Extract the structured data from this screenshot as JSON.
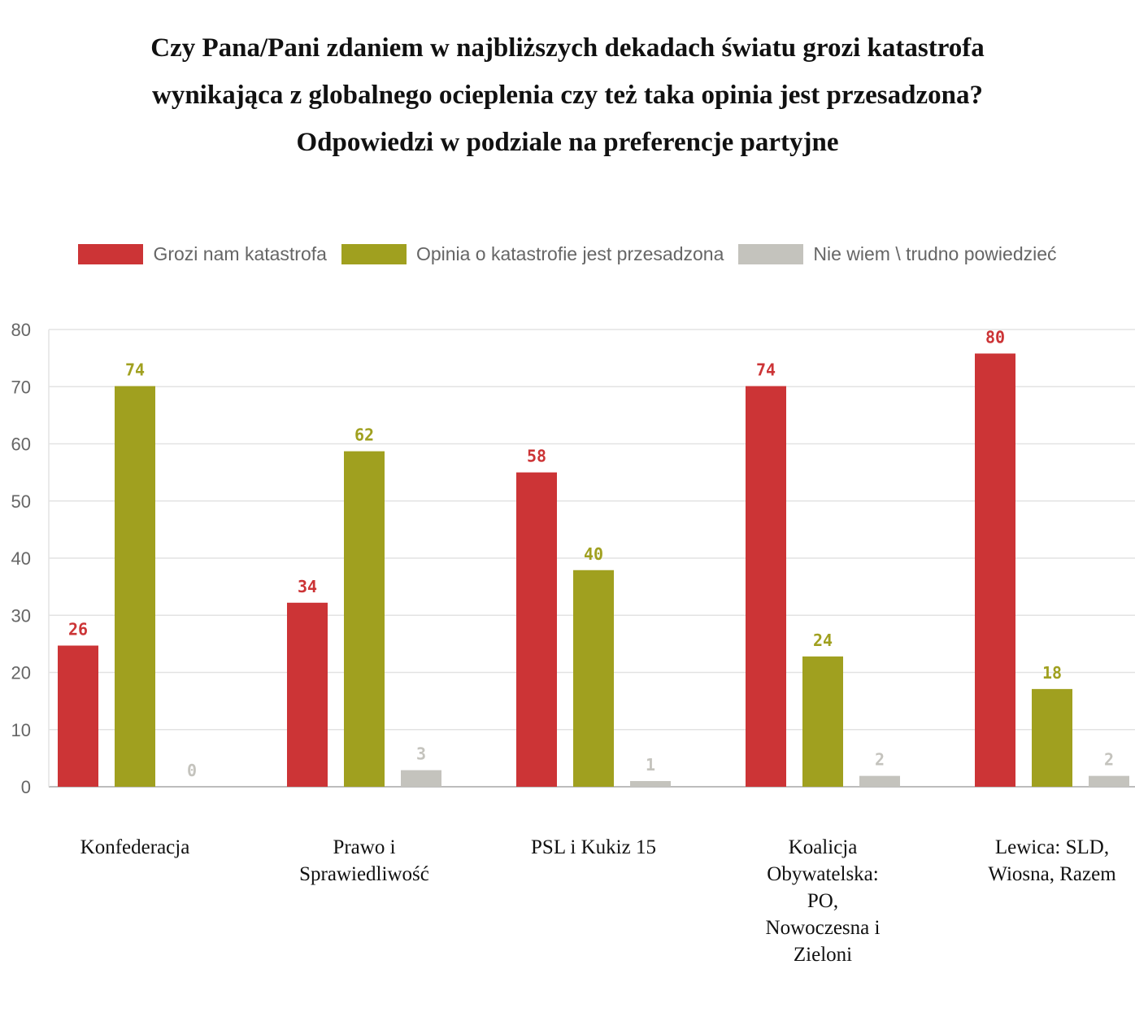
{
  "title_lines": [
    "Czy Pana/Pani zdaniem w najbliższych dekadach światu grozi katastrofa",
    "wynikająca z globalnego ocieplenia czy też taka opinia jest przesadzona?",
    "Odpowiedzi w podziale na preferencje partyjne"
  ],
  "chart_data": {
    "type": "bar",
    "title": "Czy Pana/Pani zdaniem w najbliższych dekadach światu grozi katastrofa wynikająca z globalnego ocieplenia czy też taka opinia jest przesadzona? Odpowiedzi w podziale na preferencje partyjne",
    "categories": [
      "Konfederacja",
      "Prawo i Sprawiedliwość",
      "PSL i Kukiz 15",
      "Koalicja Obywatelska: PO, Nowoczesna i Zieloni",
      "Lewica: SLD, Wiosna, Razem"
    ],
    "category_lines": [
      [
        "Konfederacja"
      ],
      [
        "Prawo i",
        "Sprawiedliwość"
      ],
      [
        "PSL i Kukiz 15"
      ],
      [
        "Koalicja",
        "Obywatelska:",
        "PO,",
        "Nowoczesna i",
        "Zieloni"
      ],
      [
        "Lewica: SLD,",
        "Wiosna, Razem"
      ]
    ],
    "series": [
      {
        "name": "Grozi nam katastrofa",
        "color": "#cc3436",
        "values": [
          26,
          34,
          58,
          74,
          80
        ],
        "bar_values": [
          24.7,
          32.2,
          55,
          70.1,
          75.8
        ]
      },
      {
        "name": "Opinia o katastrofie jest przesadzona",
        "color": "#a0a01f",
        "values": [
          74,
          62,
          40,
          24,
          18
        ],
        "bar_values": [
          70.1,
          58.7,
          37.9,
          22.8,
          17.1
        ]
      },
      {
        "name": "Nie wiem \\ trudno powiedzieć",
        "color": "#c4c3bd",
        "values": [
          0,
          3,
          1,
          2,
          2
        ],
        "bar_values": [
          0,
          2.9,
          1.0,
          1.9,
          1.9
        ]
      }
    ],
    "ylim": [
      0,
      80
    ],
    "yticks": [
      0,
      10,
      20,
      30,
      40,
      50,
      60,
      70,
      80
    ],
    "grid": true,
    "legend": "top"
  }
}
